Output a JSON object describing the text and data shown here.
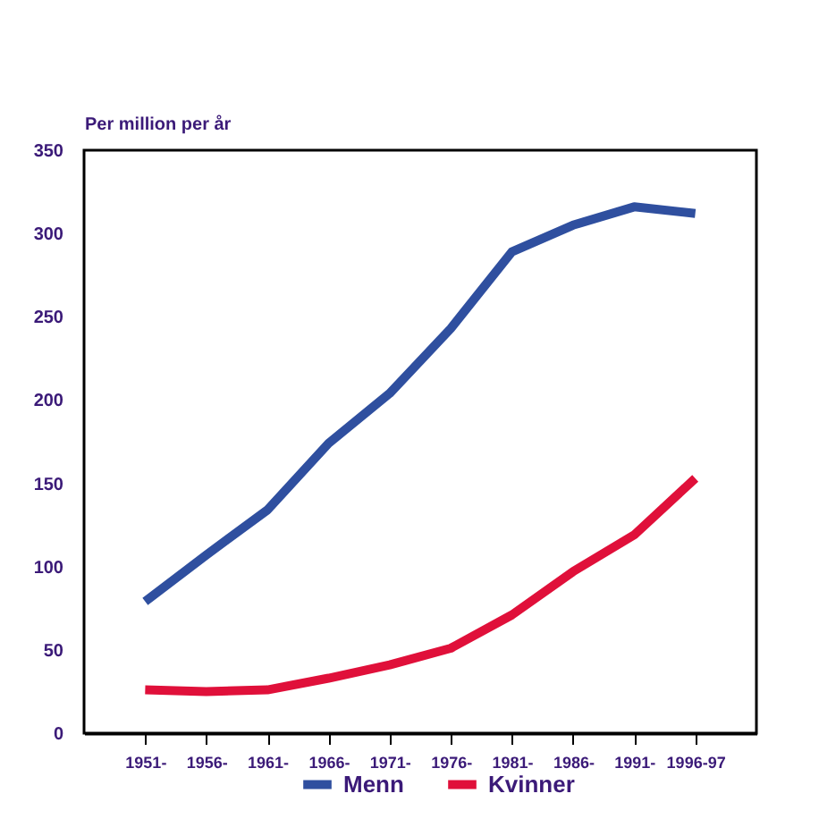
{
  "chart_data": {
    "type": "line",
    "ylabel": "Per million per år",
    "categories": [
      "1951-",
      "1956-",
      "1961-",
      "1966-",
      "1971-",
      "1976-",
      "1981-",
      "1986-",
      "1991-",
      "1996-97"
    ],
    "series": [
      {
        "name": "Menn",
        "color": "#2f4f9f",
        "values": [
          79,
          107,
          134,
          174,
          204,
          243,
          289,
          305,
          316,
          312
        ]
      },
      {
        "name": "Kvinner",
        "color": "#e0103a",
        "values": [
          26,
          25,
          26,
          33,
          41,
          51,
          71,
          97,
          119,
          153
        ]
      }
    ],
    "ylim": [
      0,
      350
    ],
    "yticks": [
      0,
      50,
      100,
      150,
      200,
      250,
      300,
      350
    ],
    "grid": false,
    "legend": "bottom",
    "marker": "none",
    "line_style": "solid"
  }
}
